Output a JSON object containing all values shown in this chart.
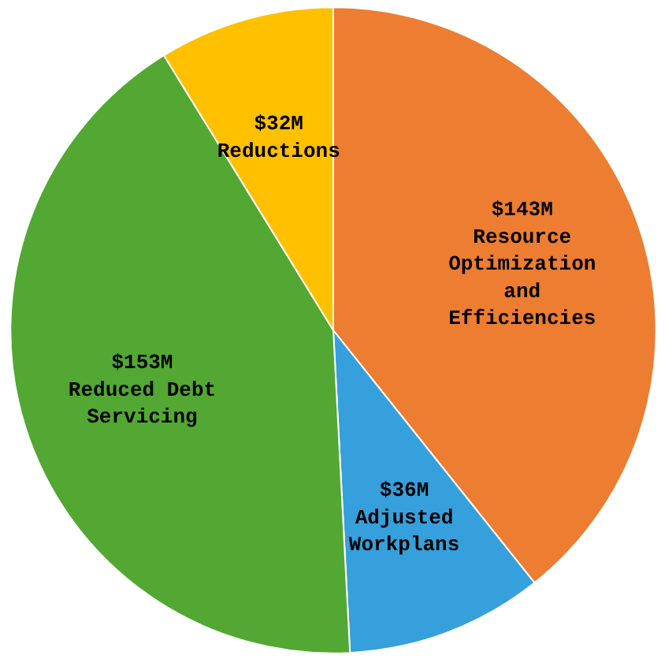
{
  "chart_data": {
    "type": "pie",
    "categories": [
      "Resource Optimization and Efficiencies",
      "Adjusted Workplans",
      "Reduced Debt Servicing",
      "Reductions"
    ],
    "values": [
      143,
      36,
      153,
      32
    ],
    "value_labels": [
      "$143M",
      "$36M",
      "$153M",
      "$32M"
    ],
    "colors": [
      "#ed7d31",
      "#35a0dc",
      "#52a832",
      "#ffc000"
    ]
  }
}
